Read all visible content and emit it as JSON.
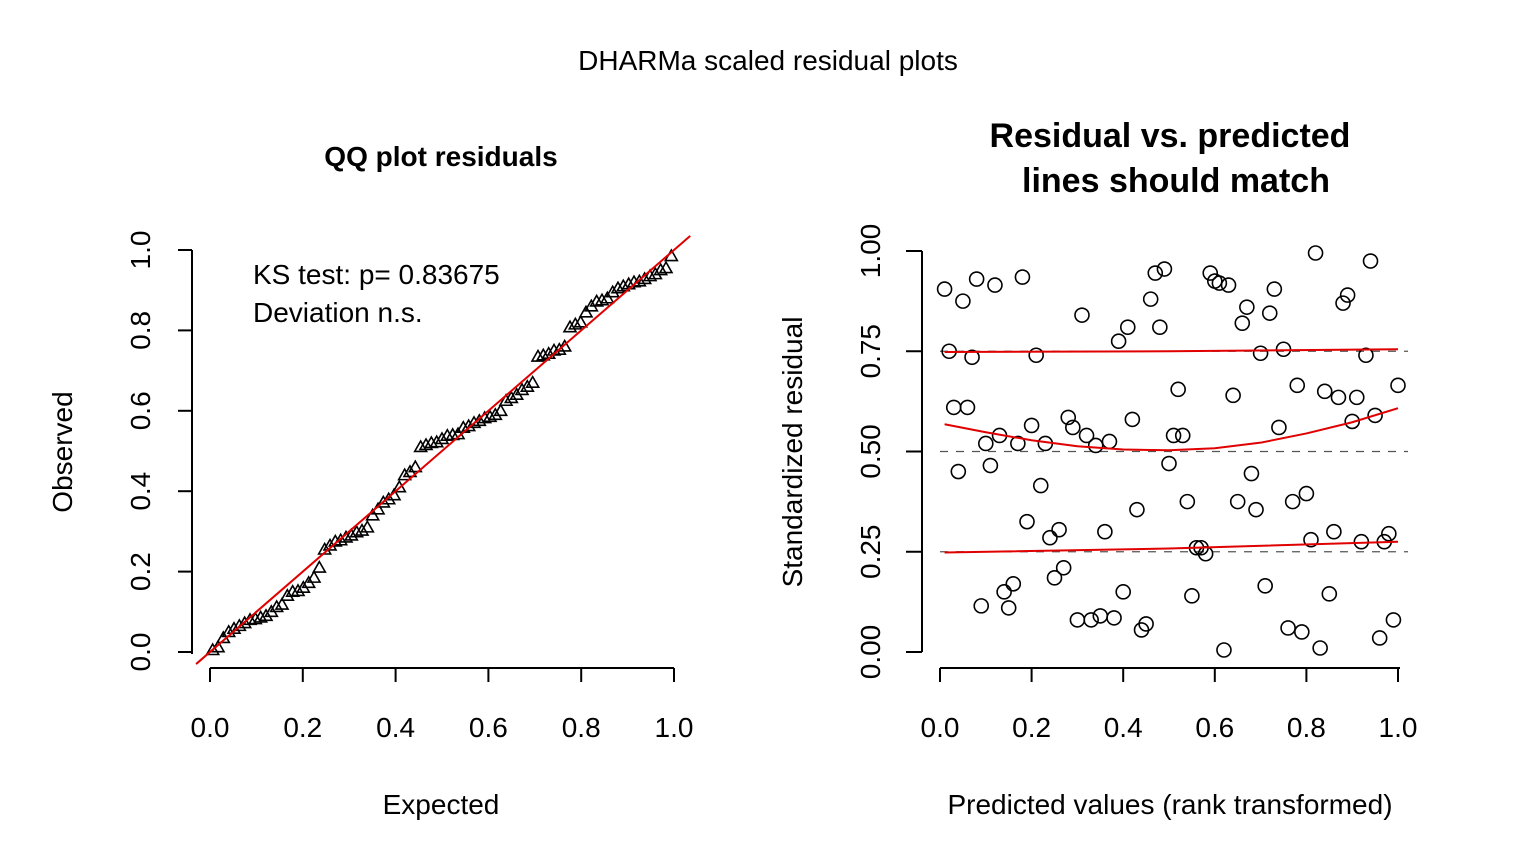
{
  "figure_title": "DHARMa scaled residual plots",
  "colors": {
    "fit_line": "#e00000",
    "marker": "#000000",
    "ref_line": "#555555"
  },
  "chart_data": [
    {
      "type": "scatter",
      "title": "QQ plot residuals",
      "xlabel": "Expected",
      "ylabel": "Observed",
      "xlim": [
        0,
        1
      ],
      "ylim": [
        0,
        1
      ],
      "xticks": [
        "0.0",
        "0.2",
        "0.4",
        "0.6",
        "0.8",
        "1.0"
      ],
      "yticks": [
        "0.0",
        "0.2",
        "0.4",
        "0.6",
        "0.8",
        "1.0"
      ],
      "marker": "triangle",
      "annotations": [
        "KS test: p= 0.83675",
        "Deviation  n.s."
      ],
      "reference_line": {
        "intercept": 0,
        "slope": 1
      },
      "points_observed": [
        0.005,
        0.012,
        0.035,
        0.05,
        0.058,
        0.065,
        0.072,
        0.08,
        0.082,
        0.086,
        0.09,
        0.1,
        0.112,
        0.118,
        0.14,
        0.15,
        0.152,
        0.16,
        0.172,
        0.185,
        0.21,
        0.255,
        0.265,
        0.275,
        0.278,
        0.285,
        0.29,
        0.298,
        0.302,
        0.31,
        0.34,
        0.355,
        0.372,
        0.38,
        0.39,
        0.41,
        0.44,
        0.448,
        0.46,
        0.51,
        0.515,
        0.52,
        0.522,
        0.53,
        0.538,
        0.54,
        0.542,
        0.558,
        0.562,
        0.57,
        0.575,
        0.582,
        0.585,
        0.59,
        0.6,
        0.625,
        0.632,
        0.64,
        0.652,
        0.66,
        0.67,
        0.735,
        0.738,
        0.742,
        0.75,
        0.752,
        0.76,
        0.808,
        0.815,
        0.82,
        0.845,
        0.86,
        0.872,
        0.875,
        0.88,
        0.895,
        0.905,
        0.91,
        0.915,
        0.92,
        0.922,
        0.928,
        0.935,
        0.94,
        0.95,
        0.955,
        0.985
      ]
    },
    {
      "type": "scatter",
      "title": "Residual vs. predicted",
      "subtitle": "lines should match",
      "xlabel": "Predicted values (rank transformed)",
      "ylabel": "Standardized residual",
      "xlim": [
        0,
        1
      ],
      "ylim": [
        0,
        1
      ],
      "xticks": [
        "0.0",
        "0.2",
        "0.4",
        "0.6",
        "0.8",
        "1.0"
      ],
      "yticks": [
        "0.00",
        "0.25",
        "0.50",
        "0.75",
        "1.00"
      ],
      "marker": "circle",
      "reference_lines": [
        0.25,
        0.5,
        0.75
      ],
      "quantile_curves": [
        {
          "x": [
            0.01,
            0.5,
            1.0
          ],
          "y": [
            0.748,
            0.75,
            0.755
          ]
        },
        {
          "x": [
            0.01,
            0.1,
            0.2,
            0.3,
            0.4,
            0.5,
            0.6,
            0.7,
            0.8,
            0.9,
            1.0
          ],
          "y": [
            0.568,
            0.548,
            0.528,
            0.513,
            0.505,
            0.503,
            0.508,
            0.522,
            0.545,
            0.573,
            0.608
          ]
        },
        {
          "x": [
            0.01,
            0.5,
            1.0
          ],
          "y": [
            0.248,
            0.258,
            0.275
          ]
        }
      ],
      "points": [
        {
          "x": 0.01,
          "y": 0.905
        },
        {
          "x": 0.02,
          "y": 0.75
        },
        {
          "x": 0.03,
          "y": 0.61
        },
        {
          "x": 0.04,
          "y": 0.45
        },
        {
          "x": 0.05,
          "y": 0.875
        },
        {
          "x": 0.06,
          "y": 0.61
        },
        {
          "x": 0.07,
          "y": 0.735
        },
        {
          "x": 0.08,
          "y": 0.93
        },
        {
          "x": 0.09,
          "y": 0.115
        },
        {
          "x": 0.1,
          "y": 0.52
        },
        {
          "x": 0.11,
          "y": 0.465
        },
        {
          "x": 0.12,
          "y": 0.915
        },
        {
          "x": 0.13,
          "y": 0.54
        },
        {
          "x": 0.14,
          "y": 0.15
        },
        {
          "x": 0.15,
          "y": 0.11
        },
        {
          "x": 0.16,
          "y": 0.17
        },
        {
          "x": 0.17,
          "y": 0.52
        },
        {
          "x": 0.18,
          "y": 0.935
        },
        {
          "x": 0.19,
          "y": 0.325
        },
        {
          "x": 0.2,
          "y": 0.565
        },
        {
          "x": 0.21,
          "y": 0.74
        },
        {
          "x": 0.22,
          "y": 0.415
        },
        {
          "x": 0.23,
          "y": 0.52
        },
        {
          "x": 0.24,
          "y": 0.285
        },
        {
          "x": 0.25,
          "y": 0.185
        },
        {
          "x": 0.26,
          "y": 0.305
        },
        {
          "x": 0.27,
          "y": 0.21
        },
        {
          "x": 0.28,
          "y": 0.585
        },
        {
          "x": 0.29,
          "y": 0.56
        },
        {
          "x": 0.3,
          "y": 0.08
        },
        {
          "x": 0.31,
          "y": 0.84
        },
        {
          "x": 0.32,
          "y": 0.54
        },
        {
          "x": 0.33,
          "y": 0.08
        },
        {
          "x": 0.34,
          "y": 0.515
        },
        {
          "x": 0.35,
          "y": 0.09
        },
        {
          "x": 0.36,
          "y": 0.3
        },
        {
          "x": 0.37,
          "y": 0.525
        },
        {
          "x": 0.38,
          "y": 0.085
        },
        {
          "x": 0.39,
          "y": 0.775
        },
        {
          "x": 0.4,
          "y": 0.15
        },
        {
          "x": 0.41,
          "y": 0.81
        },
        {
          "x": 0.42,
          "y": 0.58
        },
        {
          "x": 0.43,
          "y": 0.355
        },
        {
          "x": 0.44,
          "y": 0.055
        },
        {
          "x": 0.45,
          "y": 0.07
        },
        {
          "x": 0.46,
          "y": 0.88
        },
        {
          "x": 0.47,
          "y": 0.945
        },
        {
          "x": 0.48,
          "y": 0.81
        },
        {
          "x": 0.49,
          "y": 0.955
        },
        {
          "x": 0.5,
          "y": 0.47
        },
        {
          "x": 0.51,
          "y": 0.54
        },
        {
          "x": 0.52,
          "y": 0.655
        },
        {
          "x": 0.53,
          "y": 0.54
        },
        {
          "x": 0.54,
          "y": 0.375
        },
        {
          "x": 0.55,
          "y": 0.14
        },
        {
          "x": 0.56,
          "y": 0.26
        },
        {
          "x": 0.57,
          "y": 0.26
        },
        {
          "x": 0.58,
          "y": 0.245
        },
        {
          "x": 0.59,
          "y": 0.945
        },
        {
          "x": 0.6,
          "y": 0.925
        },
        {
          "x": 0.61,
          "y": 0.92
        },
        {
          "x": 0.62,
          "y": 0.005
        },
        {
          "x": 0.63,
          "y": 0.915
        },
        {
          "x": 0.64,
          "y": 0.64
        },
        {
          "x": 0.65,
          "y": 0.375
        },
        {
          "x": 0.66,
          "y": 0.82
        },
        {
          "x": 0.67,
          "y": 0.86
        },
        {
          "x": 0.68,
          "y": 0.445
        },
        {
          "x": 0.69,
          "y": 0.355
        },
        {
          "x": 0.7,
          "y": 0.745
        },
        {
          "x": 0.71,
          "y": 0.165
        },
        {
          "x": 0.72,
          "y": 0.845
        },
        {
          "x": 0.73,
          "y": 0.905
        },
        {
          "x": 0.74,
          "y": 0.56
        },
        {
          "x": 0.75,
          "y": 0.755
        },
        {
          "x": 0.76,
          "y": 0.06
        },
        {
          "x": 0.77,
          "y": 0.375
        },
        {
          "x": 0.78,
          "y": 0.665
        },
        {
          "x": 0.79,
          "y": 0.05
        },
        {
          "x": 0.8,
          "y": 0.395
        },
        {
          "x": 0.81,
          "y": 0.28
        },
        {
          "x": 0.82,
          "y": 0.995
        },
        {
          "x": 0.83,
          "y": 0.01
        },
        {
          "x": 0.84,
          "y": 0.65
        },
        {
          "x": 0.85,
          "y": 0.145
        },
        {
          "x": 0.86,
          "y": 0.3
        },
        {
          "x": 0.87,
          "y": 0.635
        },
        {
          "x": 0.88,
          "y": 0.87
        },
        {
          "x": 0.89,
          "y": 0.89
        },
        {
          "x": 0.9,
          "y": 0.575
        },
        {
          "x": 0.91,
          "y": 0.635
        },
        {
          "x": 0.92,
          "y": 0.275
        },
        {
          "x": 0.93,
          "y": 0.74
        },
        {
          "x": 0.94,
          "y": 0.975
        },
        {
          "x": 0.95,
          "y": 0.59
        },
        {
          "x": 0.96,
          "y": 0.035
        },
        {
          "x": 0.97,
          "y": 0.275
        },
        {
          "x": 0.98,
          "y": 0.295
        },
        {
          "x": 0.99,
          "y": 0.08
        },
        {
          "x": 1.0,
          "y": 0.665
        }
      ]
    }
  ]
}
